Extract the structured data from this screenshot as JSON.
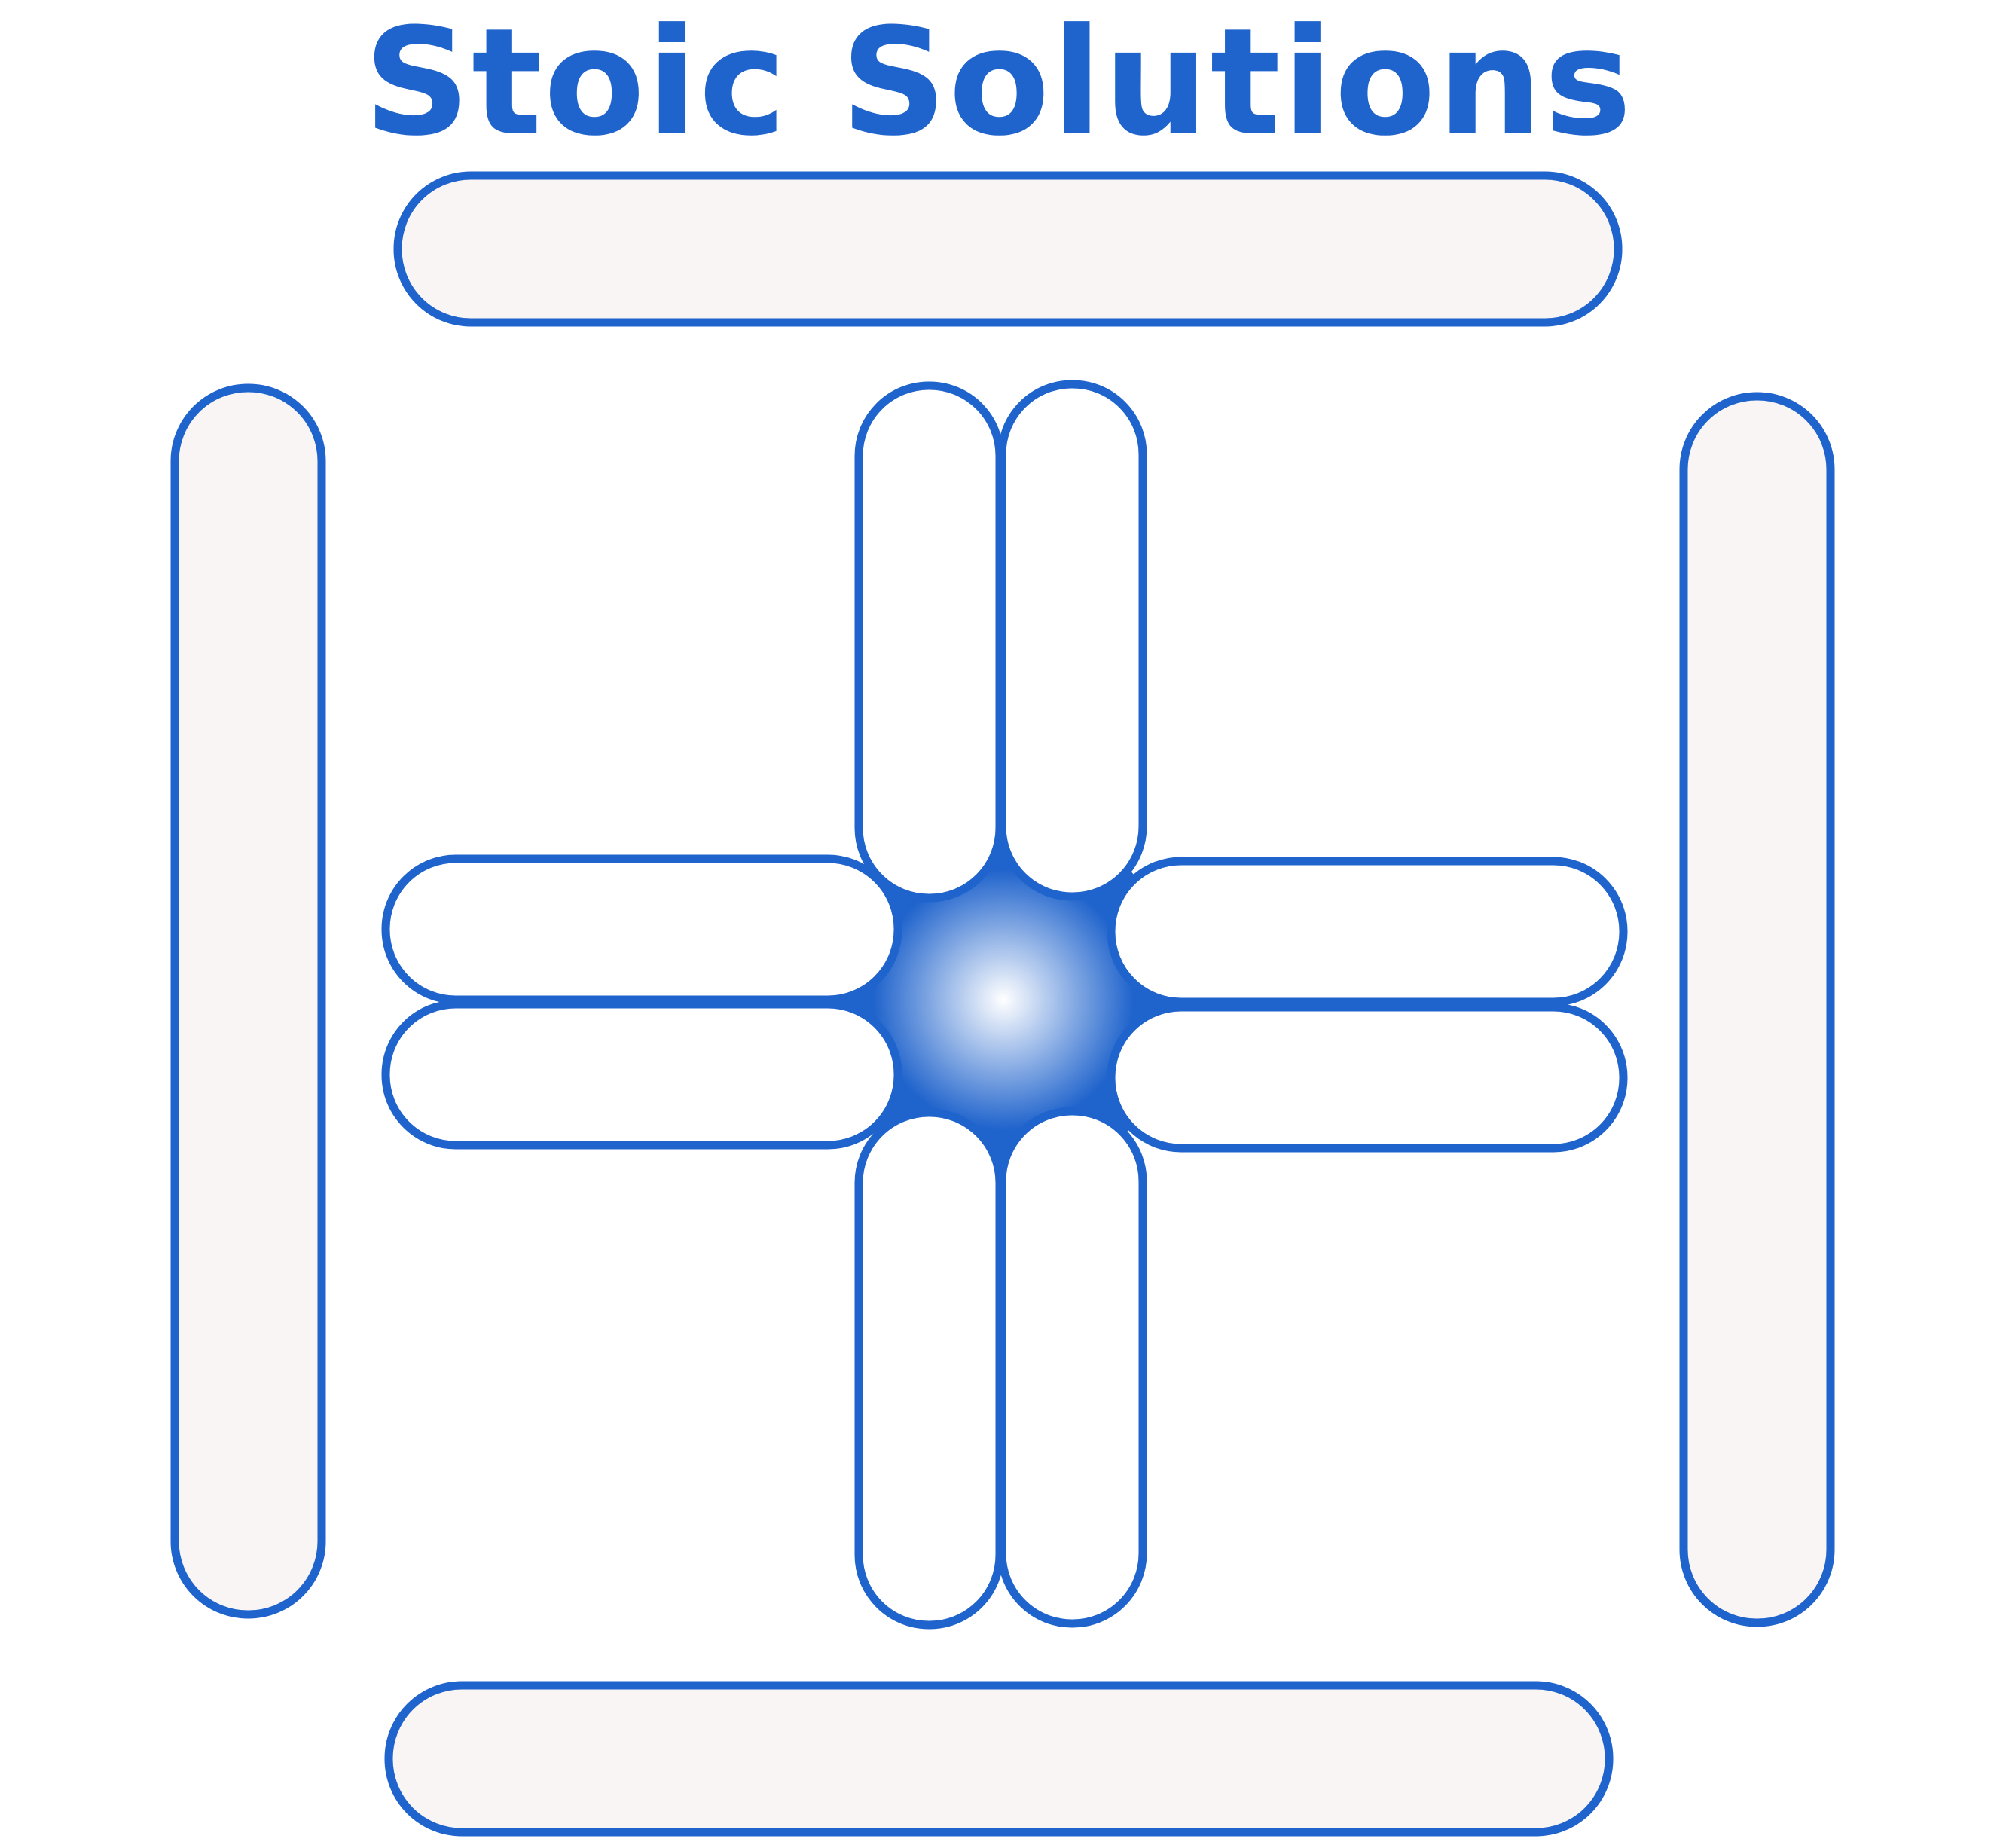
{
  "brand": {
    "name": "Stoic Solutions"
  },
  "colors": {
    "brand_blue": "#1f63cc",
    "frame_fill": "#f8f5f4",
    "petal_fill": "#ffffff",
    "core_highlight": "#ffffff"
  },
  "icons": {
    "mark": "stoic-solutions-logo-mark"
  }
}
